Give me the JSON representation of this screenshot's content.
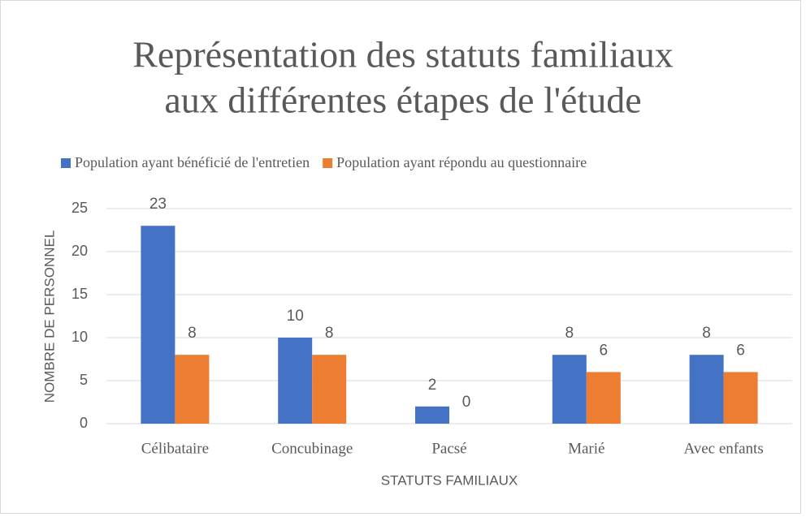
{
  "chart_data": {
    "type": "bar",
    "title": [
      "Représentation des statuts familiaux",
      "aux différentes étapes de l'étude"
    ],
    "x_label": "STATUTS FAMILIAUX",
    "y_label": "NOMBRE DE PERSONNEL",
    "categories": [
      "Célibataire",
      "Concubinage",
      "Pacsé",
      "Marié",
      "Avec enfants"
    ],
    "series": [
      {
        "name": "Population ayant bénéficié de l'entretien",
        "color": "#4472c4",
        "values": [
          23,
          10,
          2,
          8,
          8
        ]
      },
      {
        "name": "Population ayant répondu au questionnaire",
        "color": "#ed7d31",
        "values": [
          8,
          8,
          0,
          6,
          6
        ]
      }
    ],
    "ylim": [
      0,
      25
    ],
    "yticks": [
      0,
      5,
      10,
      15,
      20,
      25
    ],
    "grid": true,
    "legend": "top"
  }
}
